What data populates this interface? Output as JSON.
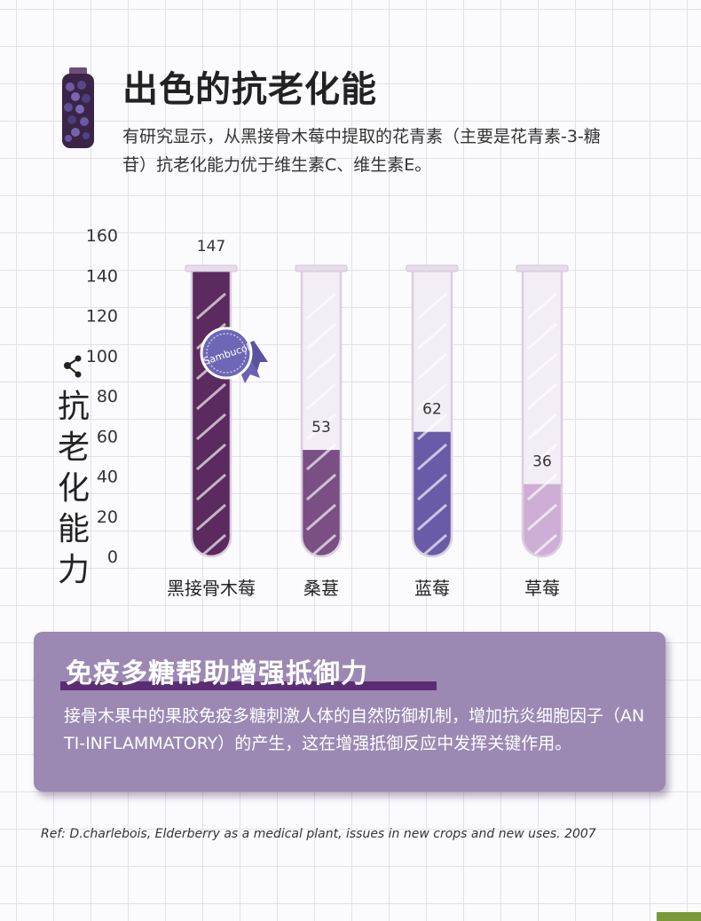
{
  "header": {
    "title": "出色的抗老化能",
    "intro": "有研究显示，从黑接骨木莓中提取的花青素（主要是花青素-3-糖苷）抗老化能力优于维生素C、维生素E。"
  },
  "side_label": "抗老化能力",
  "chart_data": {
    "type": "bar",
    "style": "test-tubes",
    "categories": [
      "黑接骨木莓",
      "桑葚",
      "蓝莓",
      "草莓"
    ],
    "values": [
      147,
      53,
      62,
      36
    ],
    "value_labels": [
      "147",
      "53",
      "62",
      "36"
    ],
    "yticks": [
      "0",
      "20",
      "40",
      "60",
      "80",
      "100",
      "120",
      "140",
      "160"
    ],
    "ylim": [
      0,
      160
    ],
    "colors": [
      "#5b2a5e",
      "#7a4f84",
      "#6b5aa8",
      "#cfaed6"
    ],
    "badge": "Sambucol"
  },
  "panel": {
    "title": "免疫多糖帮助增强抵御力",
    "text": "接骨木果中的果胶免疫多糖刺激人体的自然防御机制，增加抗炎细胞因子（AN TI-INFLAMMATORY）的产生，这在增强抵御反应中发挥关键作用。"
  },
  "reference": "Ref: D.charlebois, Elderberry as a medical plant, issues in new crops and new uses. 2007"
}
